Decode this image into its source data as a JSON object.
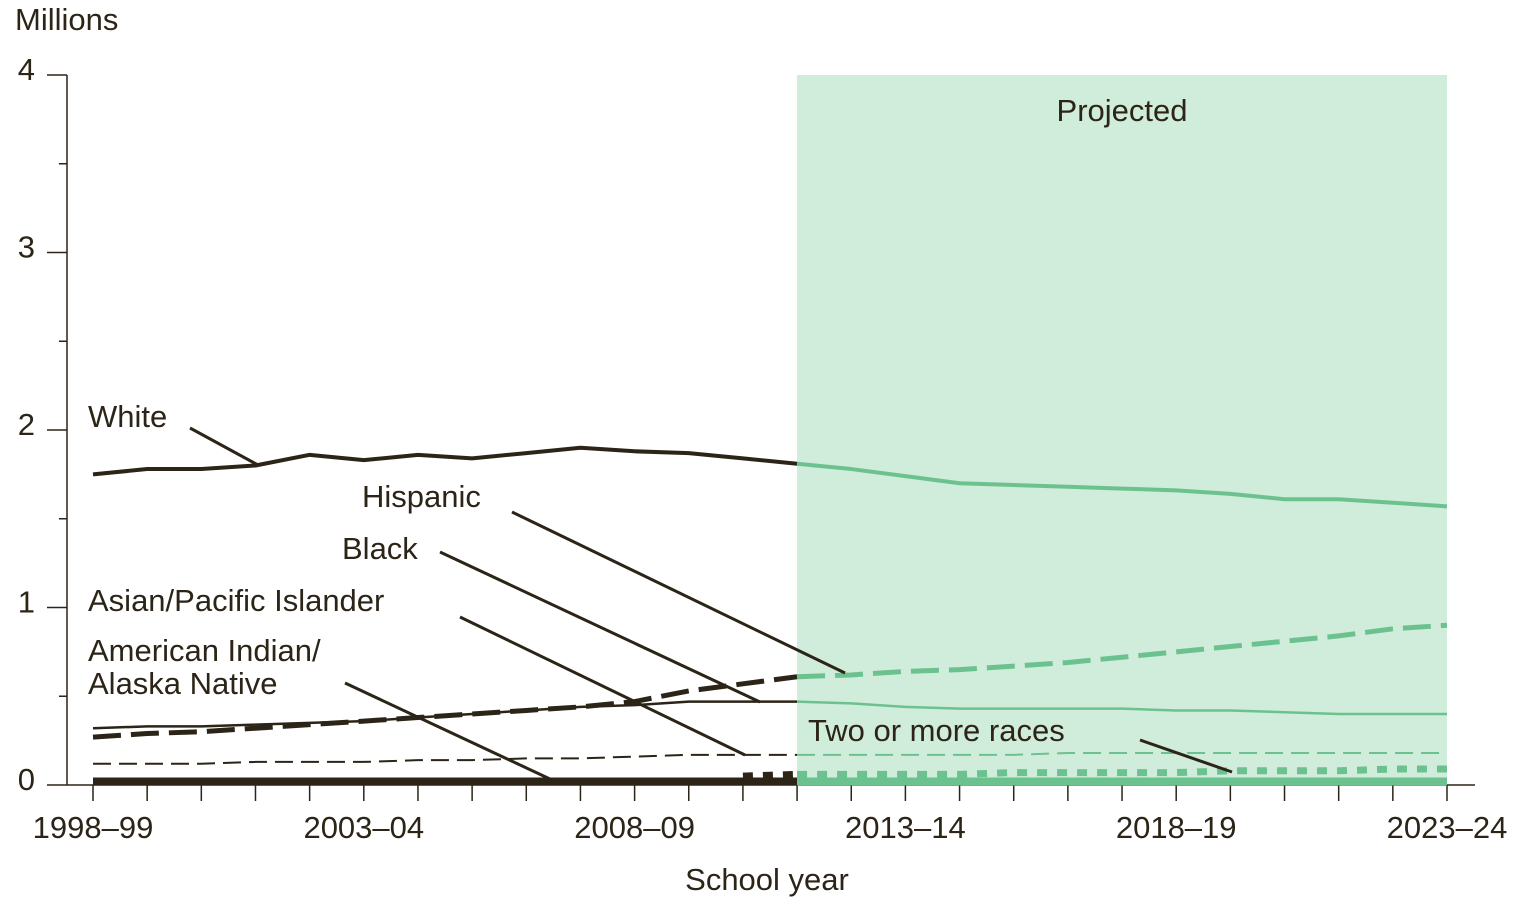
{
  "chart_data": {
    "type": "line",
    "y_axis_label": "Millions",
    "x_axis_label": "School year",
    "shade_label": "Projected",
    "projection_start_index": 13,
    "historical_color": "#2b2417",
    "projected_color": "#6cc28f",
    "shade_color": "#d0ecdb",
    "categories": [
      "1998–99",
      null,
      null,
      null,
      null,
      "2003–04",
      null,
      null,
      null,
      null,
      "2008–09",
      null,
      null,
      null,
      null,
      "2013–14",
      null,
      null,
      null,
      null,
      "2018–19",
      null,
      null,
      null,
      null,
      "2023–24"
    ],
    "ylim": [
      0,
      4
    ],
    "yticks": [
      0,
      1,
      2,
      3,
      4
    ],
    "yticks_minor": [
      0.5,
      1.5,
      2.5,
      3.5
    ],
    "series": [
      {
        "name": "White",
        "style": "solid",
        "width": 4,
        "values": [
          1.75,
          1.78,
          1.78,
          1.8,
          1.86,
          1.83,
          1.86,
          1.84,
          1.87,
          1.9,
          1.88,
          1.87,
          1.84,
          1.81,
          1.78,
          1.74,
          1.7,
          1.69,
          1.68,
          1.67,
          1.66,
          1.64,
          1.61,
          1.61,
          1.59,
          1.57
        ]
      },
      {
        "name": "Hispanic",
        "style": "dashed",
        "width": 5,
        "values": [
          0.27,
          0.29,
          0.3,
          0.32,
          0.34,
          0.36,
          0.38,
          0.4,
          0.42,
          0.44,
          0.47,
          0.53,
          0.57,
          0.61,
          0.62,
          0.64,
          0.65,
          0.67,
          0.69,
          0.72,
          0.75,
          0.78,
          0.81,
          0.84,
          0.88,
          0.9
        ]
      },
      {
        "name": "Black",
        "style": "solid",
        "width": 2.5,
        "values": [
          0.32,
          0.33,
          0.33,
          0.34,
          0.35,
          0.36,
          0.38,
          0.4,
          0.42,
          0.44,
          0.45,
          0.47,
          0.47,
          0.47,
          0.46,
          0.44,
          0.43,
          0.43,
          0.43,
          0.43,
          0.42,
          0.42,
          0.41,
          0.4,
          0.4,
          0.4
        ]
      },
      {
        "name": "Asian/Pacific Islander",
        "style": "dashed-thin",
        "width": 2,
        "values": [
          0.12,
          0.12,
          0.12,
          0.13,
          0.13,
          0.13,
          0.14,
          0.14,
          0.15,
          0.15,
          0.16,
          0.17,
          0.17,
          0.17,
          0.17,
          0.17,
          0.17,
          0.17,
          0.18,
          0.18,
          0.18,
          0.18,
          0.18,
          0.18,
          0.18,
          0.18
        ]
      },
      {
        "name": "American Indian/\nAlaska Native",
        "style": "solid",
        "width": 8,
        "values": [
          0.02,
          0.02,
          0.02,
          0.02,
          0.02,
          0.02,
          0.02,
          0.02,
          0.02,
          0.02,
          0.02,
          0.02,
          0.02,
          0.02,
          0.02,
          0.02,
          0.02,
          0.02,
          0.02,
          0.02,
          0.02,
          0.02,
          0.02,
          0.02,
          0.02,
          0.02
        ]
      },
      {
        "name": "Two or more races",
        "style": "dotted",
        "width": 7,
        "values": [
          null,
          null,
          null,
          null,
          null,
          null,
          null,
          null,
          null,
          null,
          null,
          null,
          0.05,
          0.06,
          0.06,
          0.06,
          0.06,
          0.07,
          0.07,
          0.07,
          0.07,
          0.08,
          0.08,
          0.08,
          0.09,
          0.09
        ]
      }
    ]
  }
}
